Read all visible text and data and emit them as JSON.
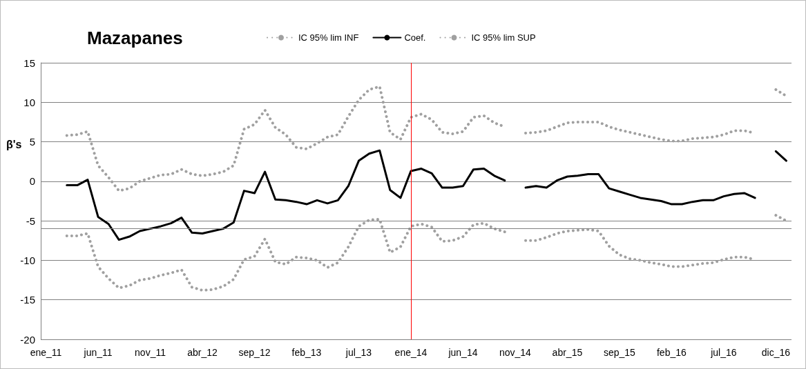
{
  "chart_data": {
    "type": "line",
    "title": "Mazapanes",
    "ylabel": "β's",
    "categories": [
      "ene_11",
      null,
      null,
      null,
      null,
      "jun_11",
      null,
      null,
      null,
      null,
      "nov_11",
      null,
      null,
      null,
      null,
      "abr_12",
      null,
      null,
      null,
      null,
      "sep_12",
      null,
      null,
      null,
      null,
      "feb_13",
      null,
      null,
      null,
      null,
      "jul_13",
      null,
      null,
      null,
      null,
      "ene_14",
      null,
      null,
      null,
      null,
      "jun_14",
      null,
      null,
      null,
      null,
      "nov_14",
      null,
      null,
      null,
      null,
      "abr_15",
      null,
      null,
      null,
      null,
      "sep_15",
      null,
      null,
      null,
      null,
      "feb_16",
      null,
      null,
      null,
      null,
      "jul_16",
      null,
      null,
      null,
      null,
      "dic_16",
      null
    ],
    "series": [
      {
        "name": "IC 95% lim INF",
        "color": "#a0a0a0",
        "line_style": "dotted",
        "values": [
          null,
          null,
          -6.9,
          -6.9,
          -6.6,
          -10.8,
          -12.3,
          -13.5,
          -13.2,
          -12.5,
          -12.3,
          -11.9,
          -11.6,
          -11.2,
          -13.4,
          -13.8,
          -13.7,
          -13.3,
          -12.4,
          -9.9,
          -9.5,
          -7.3,
          -10.2,
          -10.5,
          -9.6,
          -9.7,
          -10.0,
          -10.9,
          -10.3,
          -8.3,
          -5.7,
          -4.9,
          -4.8,
          -9.0,
          -8.3,
          -5.7,
          -5.4,
          -5.8,
          -7.6,
          -7.5,
          -7.0,
          -5.5,
          -5.3,
          -6.0,
          -6.4,
          null,
          -7.5,
          -7.5,
          -7.1,
          -6.6,
          -6.3,
          -6.2,
          -6.1,
          -6.3,
          -8.2,
          -9.3,
          -9.8,
          -10.0,
          -10.3,
          -10.5,
          -10.8,
          -10.8,
          -10.6,
          -10.4,
          -10.3,
          -9.9,
          -9.6,
          -9.6,
          -9.9,
          null,
          -4.3,
          -5.0
        ]
      },
      {
        "name": "Coef.",
        "color": "#000000",
        "line_style": "solid",
        "values": [
          null,
          null,
          -0.5,
          -0.5,
          0.2,
          -4.5,
          -5.4,
          -7.4,
          -7.0,
          -6.3,
          -6.0,
          -5.7,
          -5.3,
          -4.6,
          -6.5,
          -6.6,
          -6.3,
          -6.0,
          -5.2,
          -1.2,
          -1.5,
          1.2,
          -2.3,
          -2.4,
          -2.6,
          -2.9,
          -2.4,
          -2.8,
          -2.4,
          -0.6,
          2.6,
          3.5,
          3.9,
          -1.1,
          -2.1,
          1.3,
          1.6,
          1.0,
          -0.8,
          -0.8,
          -0.6,
          1.5,
          1.6,
          0.7,
          0.1,
          null,
          -0.8,
          -0.6,
          -0.8,
          0.1,
          0.6,
          0.7,
          0.9,
          0.9,
          -0.9,
          -1.3,
          -1.7,
          -2.1,
          -2.3,
          -2.5,
          -2.9,
          -2.9,
          -2.6,
          -2.4,
          -2.4,
          -1.9,
          -1.6,
          -1.5,
          -2.1,
          null,
          3.8,
          2.6
        ]
      },
      {
        "name": "IC 95% lim SUP",
        "color": "#a0a0a0",
        "line_style": "dotted",
        "values": [
          null,
          null,
          5.8,
          5.9,
          6.3,
          2.0,
          0.5,
          -1.2,
          -0.9,
          0.0,
          0.4,
          0.8,
          0.9,
          1.5,
          0.9,
          0.7,
          0.9,
          1.2,
          2.0,
          6.6,
          7.2,
          9.0,
          6.8,
          5.9,
          4.3,
          4.1,
          4.8,
          5.6,
          5.9,
          8.2,
          10.3,
          11.6,
          12.0,
          6.2,
          5.3,
          8.1,
          8.5,
          7.8,
          6.2,
          6.0,
          6.3,
          8.1,
          8.3,
          7.4,
          6.9,
          null,
          6.1,
          6.2,
          6.4,
          6.9,
          7.4,
          7.5,
          7.5,
          7.5,
          6.9,
          6.5,
          6.2,
          5.9,
          5.6,
          5.3,
          5.1,
          5.1,
          5.4,
          5.5,
          5.6,
          5.9,
          6.4,
          6.4,
          6.1,
          null,
          11.6,
          10.8
        ]
      }
    ],
    "ylim": [
      -20,
      15
    ],
    "yticks": [
      -20,
      -15,
      -10,
      -5,
      0,
      5,
      10,
      15
    ],
    "grid": "y",
    "legend": "top",
    "marker": "none",
    "ref_lines": [
      {
        "axis": "x",
        "value": "ene_14",
        "label": null,
        "color": "#ff0000"
      },
      {
        "axis": "y",
        "value": -6,
        "label": null,
        "color": "#808080"
      }
    ]
  }
}
